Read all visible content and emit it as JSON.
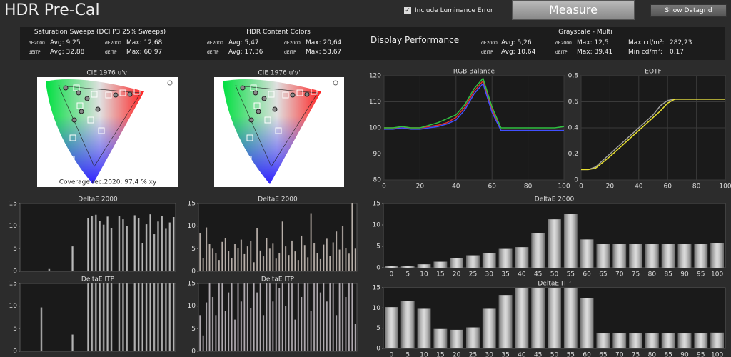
{
  "header": {
    "title": "HDR Pre-Cal",
    "checkbox": "Include Luminance Error",
    "measure": "Measure",
    "datagrid": "Show Datagrid"
  },
  "summary": {
    "display": "Display Performance",
    "groups": [
      {
        "title": "Saturation Sweeps (DCI P3 25% Sweeps)",
        "rows": [
          [
            "dE2000",
            "Avg: 9,25",
            "dE2000",
            "Max: 12,68"
          ],
          [
            "dEITP",
            "Avg: 32,88",
            "dEITP",
            "Max: 60,97"
          ]
        ]
      },
      {
        "title": "HDR Content Colors",
        "rows": [
          [
            "dE2000",
            "Avg: 5,47",
            "dE2000",
            "Max: 20,64"
          ],
          [
            "dEITP",
            "Avg: 17,36",
            "dEITP",
            "Max: 53,67"
          ]
        ]
      },
      {
        "title": "Grayscale - Multi",
        "rows": [
          [
            "dE2000",
            "Avg: 5,26",
            "dE2000",
            "Max: 12,5",
            "Max cd/m²:",
            "282,23"
          ],
          [
            "dEITP",
            "Avg: 10,64",
            "dEITP",
            "Max: 39,41",
            "Min cd/m²:",
            "0,17"
          ]
        ]
      }
    ]
  },
  "charts": [
    {
      "type": "cie",
      "title": "CIE 1976 u'v'",
      "caption": "Coverage rec.2020:  97,4 % xy"
    },
    {
      "type": "cie",
      "title": "CIE 1976 u'v'"
    },
    {
      "type": "line",
      "title": "RGB Balance",
      "x": [
        0,
        5,
        10,
        15,
        20,
        25,
        30,
        35,
        40,
        45,
        50,
        55,
        60,
        65,
        70,
        75,
        80,
        85,
        90,
        95,
        100
      ],
      "xlim": [
        0,
        100
      ],
      "xticks": [
        0,
        20,
        40,
        60,
        80,
        100
      ],
      "ylim": [
        80,
        120
      ],
      "yticks": [
        80,
        90,
        100,
        110,
        120
      ],
      "grid": true,
      "series": [
        {
          "color": "#e03030",
          "values": [
            100,
            100,
            100,
            100,
            100,
            100.5,
            101,
            102,
            104,
            108,
            114,
            118,
            107,
            99,
            99,
            99,
            99,
            99,
            99,
            99,
            99
          ]
        },
        {
          "color": "#30c040",
          "values": [
            100,
            100,
            100.5,
            100,
            100,
            101,
            102,
            103.5,
            105,
            109,
            115,
            119,
            108,
            100,
            100,
            100,
            100,
            100,
            100,
            100,
            100.5
          ]
        },
        {
          "color": "#4050ff",
          "values": [
            99.5,
            99.5,
            100,
            99.5,
            99.5,
            100,
            100.5,
            101.5,
            103,
            107,
            113,
            117,
            106,
            99,
            99,
            99,
            99,
            99,
            99,
            99,
            99
          ]
        }
      ]
    },
    {
      "type": "line",
      "title": "EOTF",
      "x": [
        0,
        5,
        10,
        20,
        30,
        40,
        50,
        55,
        60,
        65,
        100
      ],
      "xlim": [
        0,
        100
      ],
      "xticks": [
        0,
        20,
        40,
        60,
        80,
        100
      ],
      "ylim": [
        0,
        0.8
      ],
      "yticks": [
        0,
        {
          "value": 0.2,
          "label": "0,2"
        },
        {
          "value": 0.4,
          "label": "0,4"
        },
        {
          "value": 0.6,
          "label": "0,6"
        },
        {
          "value": 0.8,
          "label": "0,8"
        }
      ],
      "grid": true,
      "series": [
        {
          "color": "#a0a0a0",
          "values": [
            0.08,
            0.08,
            0.1,
            0.2,
            0.3,
            0.4,
            0.5,
            0.57,
            0.61,
            0.62,
            0.62
          ]
        },
        {
          "color": "#e8e030",
          "values": [
            0.08,
            0.08,
            0.09,
            0.18,
            0.28,
            0.38,
            0.48,
            0.53,
            0.59,
            0.62,
            0.62
          ]
        }
      ]
    },
    {
      "type": "bar",
      "title": "DeltaE 2000",
      "ylim": [
        0,
        15
      ],
      "yticks": [
        0,
        5,
        10,
        15
      ],
      "color": "#b0b0b0",
      "values": [
        0,
        0,
        0,
        0,
        0,
        0,
        0,
        0.5,
        0,
        0,
        0,
        0,
        0,
        5.5,
        0,
        0,
        0,
        11.8,
        12.3,
        12.5,
        11.2,
        10.3,
        12.1,
        9.6,
        0,
        12.2,
        11.5,
        10.1,
        0,
        12.4,
        11.7,
        6.3,
        10.4,
        12.6,
        8.2,
        11,
        12.2,
        9.4,
        10.8,
        12
      ]
    },
    {
      "type": "bar",
      "title": "DeltaE ITP",
      "ylim": [
        0,
        15
      ],
      "yticks": [
        0,
        5,
        10,
        15
      ],
      "color": "#a8a8a8",
      "values": [
        0,
        0,
        0,
        0,
        0,
        9.7,
        0,
        0,
        0,
        0,
        0,
        0,
        0,
        3.7,
        0,
        0,
        0,
        15,
        15,
        15,
        15,
        15,
        15,
        15,
        0,
        15,
        15,
        15,
        0,
        15,
        15,
        15,
        15,
        15,
        15,
        15,
        15,
        15,
        15,
        15
      ]
    },
    {
      "type": "bar",
      "title": "DeltaE 2000",
      "ylim": [
        0,
        15
      ],
      "yticks": [
        0,
        5,
        10,
        15
      ],
      "color": "#b4a8a0",
      "values": [
        8.5,
        3,
        9.7,
        6,
        5,
        4,
        2.5,
        6.5,
        7.4,
        4.5,
        3,
        6,
        5.2,
        7,
        3.8,
        5.5,
        6.7,
        2,
        9.5,
        4.6,
        3.3,
        7.4,
        5,
        6.1,
        2.8,
        4,
        11,
        5.5,
        3.6,
        6.8,
        4.4,
        2.5,
        7.9,
        5.8,
        3.1,
        12.7,
        6.2,
        4.1,
        2.7,
        5.9,
        7.2,
        3.4,
        6.4,
        8.8,
        4.8,
        10.1,
        5.2,
        3.9,
        15,
        5
      ]
    },
    {
      "type": "bar",
      "title": "DeltaE ITP",
      "ylim": [
        0,
        15
      ],
      "yticks": [
        0,
        5,
        10,
        15
      ],
      "color": "#a8a0a8",
      "values": [
        8,
        3.5,
        10.8,
        15,
        12,
        8,
        15,
        15,
        9,
        13,
        15,
        7,
        15,
        11,
        15,
        15,
        9.5,
        15,
        13,
        15,
        8,
        15,
        15,
        11,
        15,
        14,
        15,
        10,
        15,
        15,
        7,
        15,
        12,
        15,
        15,
        9,
        15,
        15,
        13,
        15,
        11,
        15,
        15,
        8,
        15,
        15,
        12,
        15,
        15,
        6
      ]
    },
    {
      "type": "bar",
      "title": "DeltaE 2000",
      "ylim": [
        0,
        15
      ],
      "yticks": [
        0,
        5,
        10,
        15
      ],
      "color": "#d0d0d0",
      "categories": [
        "0",
        "5",
        "10",
        "15",
        "20",
        "25",
        "30",
        "35",
        "40",
        "45",
        "50",
        "55",
        "60",
        "65",
        "70",
        "75",
        "80",
        "85",
        "90",
        "95",
        "100"
      ],
      "values": [
        0.5,
        0.4,
        0.8,
        1.4,
        2.3,
        2.9,
        3.4,
        4.4,
        4.8,
        8,
        11.3,
        12.5,
        6.6,
        5.5,
        5.5,
        5.5,
        5.5,
        5.5,
        5.5,
        5.5,
        5.7
      ]
    },
    {
      "type": "bar",
      "title": "DeltaE ITP",
      "ylim": [
        0,
        15
      ],
      "yticks": [
        0,
        5,
        10,
        15
      ],
      "color": "#d0d0d0",
      "categories": [
        "0",
        "5",
        "10",
        "15",
        "20",
        "25",
        "30",
        "35",
        "40",
        "45",
        "50",
        "55",
        "60",
        "65",
        "70",
        "75",
        "80",
        "85",
        "90",
        "95",
        "100"
      ],
      "values": [
        10.2,
        11.7,
        9.8,
        4.8,
        4.6,
        5.2,
        9.8,
        13.2,
        15,
        15,
        15,
        15,
        12.5,
        3.7,
        3.7,
        3.7,
        3.7,
        3.7,
        3.7,
        3.7,
        3.9
      ]
    }
  ]
}
